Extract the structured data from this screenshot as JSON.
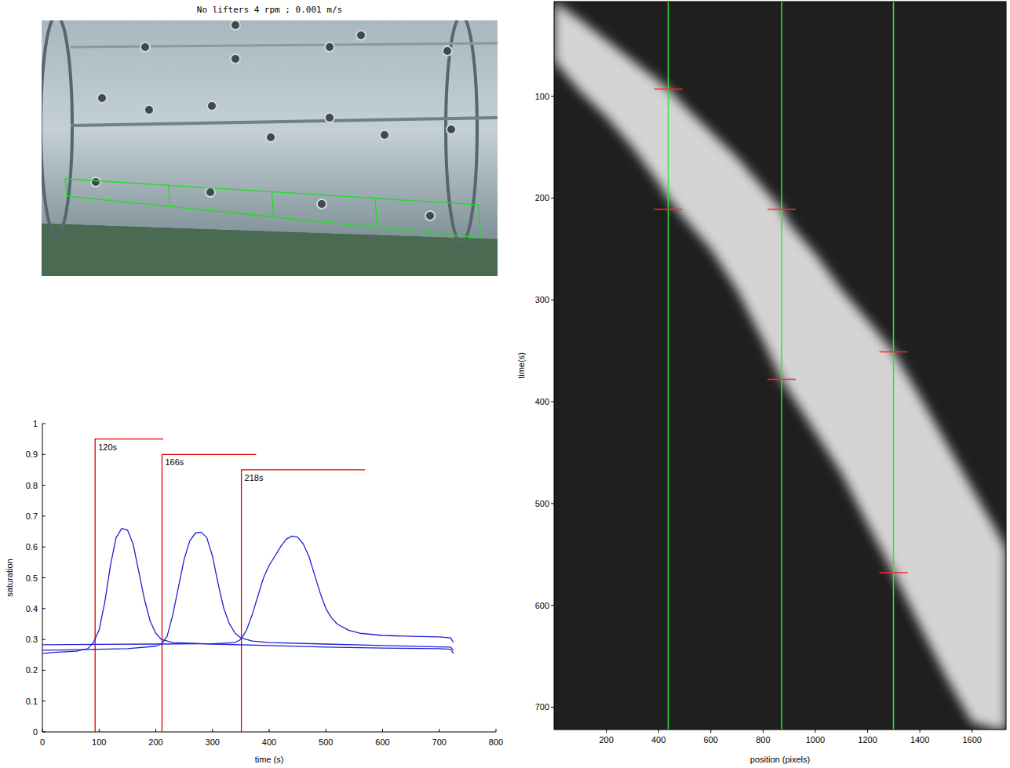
{
  "chart_data": [
    {
      "type": "image",
      "title": "No lifters 4 rpm ; 0.001 m/s"
    },
    {
      "type": "line",
      "x_label": "time (s)",
      "y_label": "saturation",
      "xlim": [
        0,
        800
      ],
      "ylim": [
        0,
        1
      ],
      "xticks": [
        0,
        100,
        200,
        300,
        400,
        500,
        600,
        700,
        800
      ],
      "yticks": [
        0,
        0.1,
        0.2,
        0.3,
        0.4,
        0.5,
        0.6,
        0.7,
        0.8,
        0.9,
        1
      ],
      "series": [
        {
          "color": "#1f1fd6",
          "x": [
            0,
            20,
            40,
            60,
            80,
            90,
            100,
            110,
            120,
            130,
            140,
            150,
            160,
            170,
            180,
            190,
            200,
            210,
            230,
            260,
            300,
            400,
            500,
            600,
            700,
            720,
            725
          ],
          "values": [
            0.255,
            0.258,
            0.26,
            0.262,
            0.27,
            0.29,
            0.33,
            0.42,
            0.54,
            0.63,
            0.66,
            0.655,
            0.61,
            0.52,
            0.43,
            0.36,
            0.32,
            0.3,
            0.29,
            0.288,
            0.285,
            0.28,
            0.275,
            0.272,
            0.27,
            0.268,
            0.255
          ]
        },
        {
          "color": "#1f1fd6",
          "x": [
            0,
            50,
            100,
            150,
            200,
            210,
            220,
            230,
            240,
            250,
            260,
            270,
            280,
            290,
            300,
            310,
            320,
            330,
            340,
            350,
            370,
            400,
            500,
            600,
            700,
            720,
            725
          ],
          "values": [
            0.265,
            0.266,
            0.268,
            0.27,
            0.278,
            0.285,
            0.31,
            0.38,
            0.47,
            0.56,
            0.62,
            0.645,
            0.648,
            0.63,
            0.57,
            0.48,
            0.4,
            0.35,
            0.32,
            0.305,
            0.295,
            0.29,
            0.285,
            0.28,
            0.276,
            0.275,
            0.265
          ]
        },
        {
          "color": "#1f1fd6",
          "x": [
            0,
            100,
            200,
            300,
            340,
            350,
            360,
            370,
            380,
            390,
            400,
            410,
            420,
            430,
            440,
            450,
            460,
            470,
            480,
            490,
            500,
            510,
            520,
            540,
            560,
            600,
            650,
            700,
            720,
            725
          ],
          "values": [
            0.283,
            0.284,
            0.285,
            0.286,
            0.29,
            0.3,
            0.33,
            0.38,
            0.44,
            0.5,
            0.54,
            0.57,
            0.6,
            0.625,
            0.635,
            0.632,
            0.61,
            0.57,
            0.51,
            0.45,
            0.4,
            0.37,
            0.35,
            0.33,
            0.32,
            0.313,
            0.31,
            0.308,
            0.305,
            0.29
          ]
        }
      ],
      "annotations": [
        {
          "x": 93,
          "y": 0.95,
          "duration": 120,
          "label": "120s"
        },
        {
          "x": 211,
          "y": 0.9,
          "duration": 166,
          "label": "166s"
        },
        {
          "x": 351,
          "y": 0.85,
          "duration": 218,
          "label": "218s"
        }
      ]
    },
    {
      "type": "area",
      "x_label": "position (pixels)",
      "y_label": "time(s)",
      "xlim": [
        0,
        1730
      ],
      "ylim": [
        722,
        7
      ],
      "xticks": [
        200,
        400,
        600,
        800,
        1000,
        1200,
        1400,
        1600
      ],
      "yticks": [
        100,
        200,
        300,
        400,
        500,
        600,
        700
      ],
      "color": "#d4d4d4",
      "x": [
        0,
        100,
        200,
        300,
        400,
        437,
        500,
        600,
        700,
        800,
        871,
        900,
        1000,
        1100,
        1200,
        1299,
        1400,
        1500,
        1600,
        1700,
        1730
      ],
      "series": [
        {
          "values": [
            7,
            25,
            45,
            65,
            85,
            93,
            110,
            135,
            160,
            190,
            211,
            225,
            255,
            290,
            320,
            351,
            395,
            440,
            485,
            530,
            545
          ]
        },
        {
          "values": [
            65,
            95,
            120,
            150,
            185,
            200,
            220,
            250,
            290,
            340,
            378,
            390,
            430,
            470,
            520,
            568,
            620,
            670,
            715,
            722,
            722
          ]
        }
      ],
      "vlines": [
        437,
        871,
        1299
      ],
      "red_marks": [
        {
          "x": 437,
          "y": 93
        },
        {
          "x": 437,
          "y": 211
        },
        {
          "x": 871,
          "y": 211
        },
        {
          "x": 871,
          "y": 378
        },
        {
          "x": 1299,
          "y": 351
        },
        {
          "x": 1299,
          "y": 568
        }
      ]
    }
  ]
}
